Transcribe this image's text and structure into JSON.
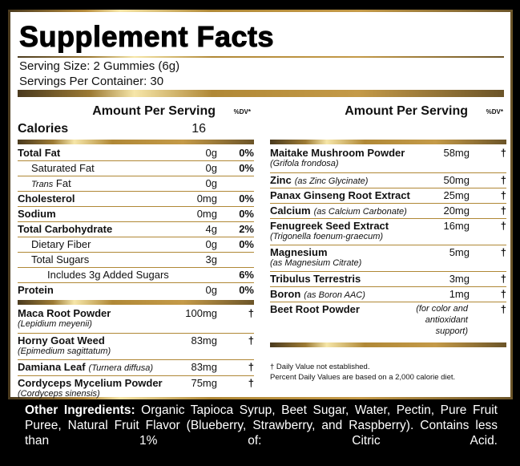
{
  "title": "Supplement Facts",
  "serving_size": "Serving Size: 2 Gummies (6g)",
  "servings_per_container": "Servings Per Container: 30",
  "amount_header": "Amount Per Serving",
  "dv_header": "%DV*",
  "calories": {
    "label": "Calories",
    "value": "16"
  },
  "nutrients": [
    {
      "name": "Total Fat",
      "amount": "0g",
      "dv": "0%"
    },
    {
      "name": "Saturated Fat",
      "amount": "0g",
      "dv": "0%"
    },
    {
      "name_prefix": "Trans",
      "name": " Fat",
      "amount": "0g",
      "dv": ""
    },
    {
      "name": "Cholesterol",
      "amount": "0mg",
      "dv": "0%"
    },
    {
      "name": "Sodium",
      "amount": "0mg",
      "dv": "0%"
    },
    {
      "name": "Total Carbohydrate",
      "amount": "4g",
      "dv": "2%"
    },
    {
      "name": "Dietary Fiber",
      "amount": "0g",
      "dv": "0%"
    },
    {
      "name": "Total Sugars",
      "amount": "3g",
      "dv": ""
    },
    {
      "name": "Includes 3g Added Sugars",
      "amount": "",
      "dv": "6%"
    },
    {
      "name": "Protein",
      "amount": "0g",
      "dv": "0%"
    }
  ],
  "ingredients_left": [
    {
      "name": "Maca Root Powder",
      "sub": "(Lepidium meyenii)",
      "amount": "100mg",
      "dv": "†"
    },
    {
      "name": "Horny Goat Weed",
      "sub": "(Epimedium sagittatum)",
      "amount": "83mg",
      "dv": "†"
    },
    {
      "name": "Damiana Leaf",
      "inline": "(Turnera diffusa)",
      "amount": "83mg",
      "dv": "†"
    },
    {
      "name": "Cordyceps Mycelium Powder",
      "sub": "(Cordyceps sinensis)",
      "amount": "75mg",
      "dv": "†"
    }
  ],
  "ingredients_right": [
    {
      "name": "Maitake Mushroom Powder",
      "sub": "(Grifola frondosa)",
      "amount": "58mg",
      "dv": "†"
    },
    {
      "name": "Zinc",
      "inline": "(as Zinc Glycinate)",
      "amount": "50mg",
      "dv": "†"
    },
    {
      "name": "Panax Ginseng Root Extract",
      "amount": "25mg",
      "dv": "†"
    },
    {
      "name": "Calcium",
      "inline": "(as Calcium Carbonate)",
      "amount": "20mg",
      "dv": "†"
    },
    {
      "name": "Fenugreek Seed Extract",
      "sub": "(Trigonella foenum-graecum)",
      "amount": "16mg",
      "dv": "†"
    },
    {
      "name": "Magnesium",
      "sub": "(as Magnesium Citrate)",
      "amount": "5mg",
      "dv": "†"
    },
    {
      "name": "Tribulus Terrestris",
      "amount": "3mg",
      "dv": "†"
    },
    {
      "name": "Boron",
      "inline": "(as Boron AAC)",
      "amount": "1mg",
      "dv": "†"
    },
    {
      "name": "Beet Root Powder",
      "amount": "(for color and antioxidant support)",
      "dv": "†"
    }
  ],
  "footnotes": [
    "† Daily Value not established.",
    "Percent Daily Values are based on a 2,000 calorie diet."
  ],
  "other_ingredients": {
    "label": "Other Ingredients:",
    "text": " Organic Tapioca Syrup, Beet Sugar, Water, Pectin, Pure Fruit Puree, Natural Fruit Flavor (Blueberry, Strawberry, and Raspberry). Contains less than 1% of: Citric Acid."
  },
  "colors": {
    "background": "#000000",
    "gold": "#b08836",
    "panel": "#ffffff"
  }
}
